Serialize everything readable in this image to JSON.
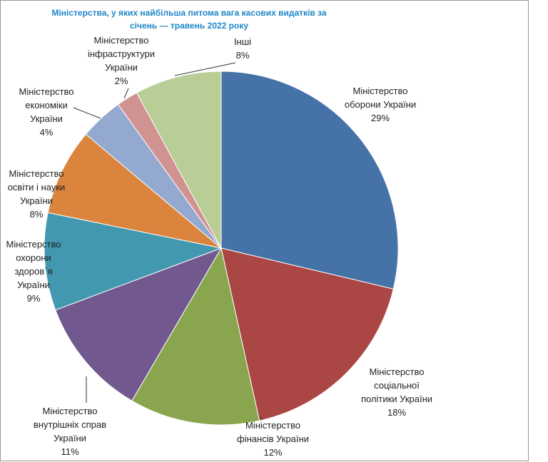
{
  "chart_data": {
    "type": "pie",
    "title": "Міністерства, у яких найбільша питома вага касових видатків за січень — травень 2022 року",
    "categories": [
      "Міністерство оборони України",
      "Міністерство соціальної політики України",
      "Міністерство фінансів України",
      "Міністерство внутрішніх справ України",
      "Міністерство охорони здоров`я України",
      "Міністерство освіти і науки України",
      "Міністерство економіки України",
      "Міністерство інфраструктури України",
      "Інші"
    ],
    "values": [
      29,
      18,
      12,
      11,
      9,
      8,
      4,
      2,
      8
    ],
    "value_labels": [
      "29%",
      "18%",
      "12%",
      "11%",
      "9%",
      "8%",
      "4%",
      "2%",
      "8%"
    ],
    "colors": [
      "#4572a7",
      "#aa4643",
      "#89a54e",
      "#71588f",
      "#4198af",
      "#db843d",
      "#93a9cf",
      "#d19392",
      "#b9cd96"
    ]
  }
}
